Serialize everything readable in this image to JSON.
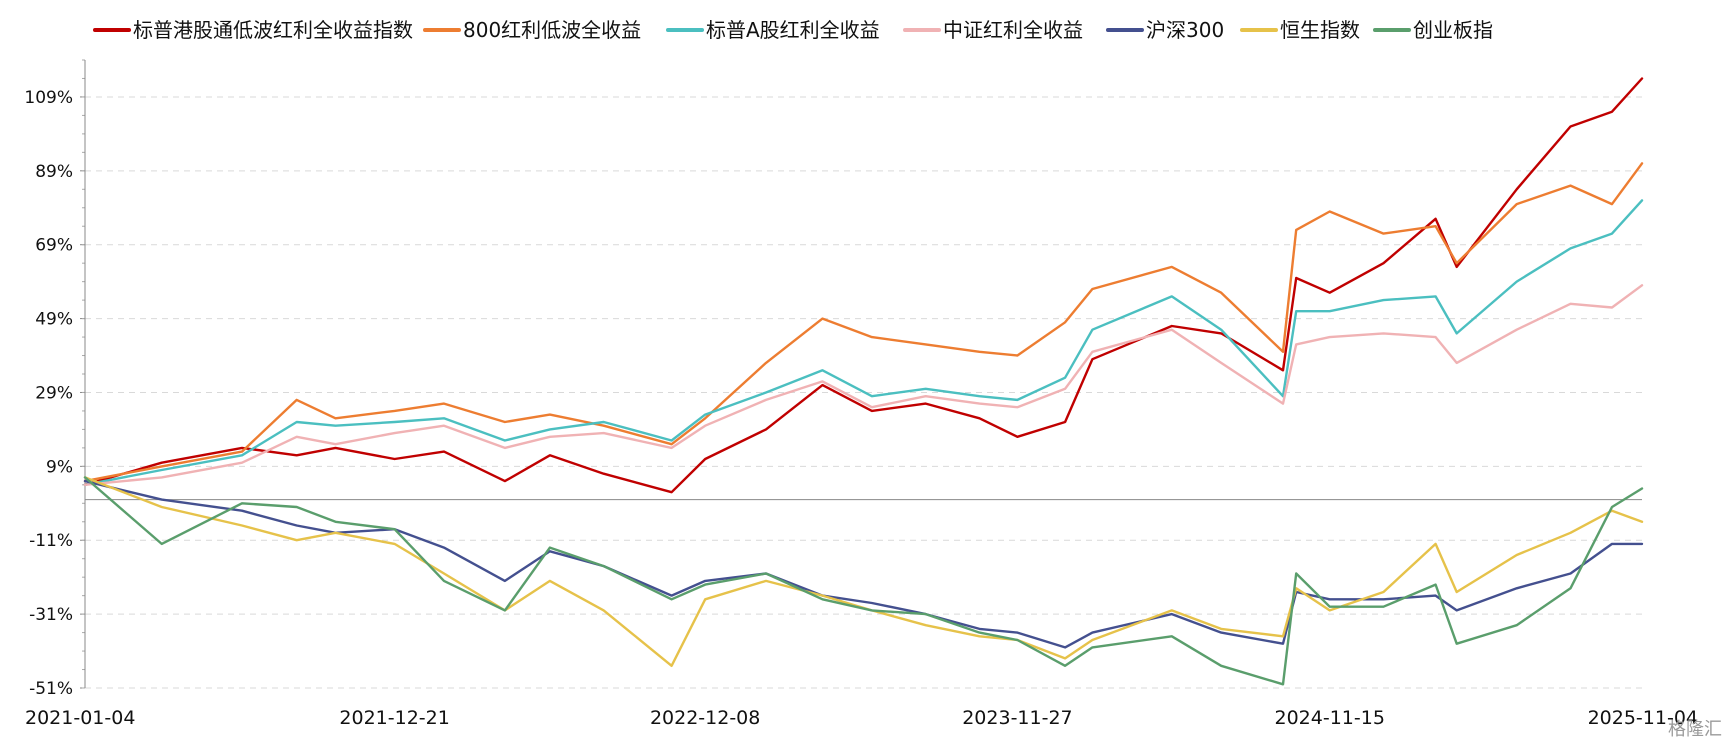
{
  "chart_data": {
    "type": "line",
    "title": "",
    "xlabel": "",
    "ylabel": "",
    "ylim": [
      -51,
      119
    ],
    "y_ticks": [
      "109%",
      "89%",
      "69%",
      "49%",
      "29%",
      "9%",
      "-11%",
      "-31%",
      "-51%"
    ],
    "x_ticks": [
      "2021-01-04",
      "2021-12-21",
      "2022-12-08",
      "2023-11-27",
      "2024-11-15",
      "2025-11-04"
    ],
    "x": [
      "2021-01-04",
      "2021-04-01",
      "2021-07-01",
      "2021-09-01",
      "2021-10-15",
      "2021-12-21",
      "2022-02-15",
      "2022-04-25",
      "2022-06-15",
      "2022-08-15",
      "2022-10-31",
      "2022-12-08",
      "2023-02-15",
      "2023-04-20",
      "2023-06-15",
      "2023-08-15",
      "2023-10-15",
      "2023-11-27",
      "2024-01-20",
      "2024-02-20",
      "2024-05-20",
      "2024-07-15",
      "2024-09-23",
      "2024-10-08",
      "2024-11-15",
      "2025-01-15",
      "2025-03-15",
      "2025-04-08",
      "2025-06-15",
      "2025-08-15",
      "2025-10-01",
      "2025-11-04"
    ],
    "grid": true,
    "legend_position": "top",
    "series": [
      {
        "name": "标普港股通低波红利全收益指数",
        "color": "#c00000",
        "values": [
          4,
          10,
          14,
          12,
          14,
          11,
          13,
          5,
          12,
          7,
          2,
          11,
          19,
          31,
          24,
          26,
          22,
          17,
          21,
          38,
          47,
          45,
          35,
          60,
          56,
          64,
          76,
          63,
          84,
          101,
          105,
          114
        ]
      },
      {
        "name": "800红利低波全收益",
        "color": "#ed7d31",
        "values": [
          5,
          9,
          13,
          27,
          22,
          24,
          26,
          21,
          23,
          20,
          15,
          22,
          37,
          49,
          44,
          42,
          40,
          39,
          48,
          57,
          63,
          56,
          40,
          73,
          78,
          72,
          74,
          64,
          80,
          85,
          80,
          91
        ]
      },
      {
        "name": "标普A股红利全收益",
        "color": "#4bbfc0",
        "values": [
          4,
          8,
          12,
          21,
          20,
          21,
          22,
          16,
          19,
          21,
          16,
          23,
          29,
          35,
          28,
          30,
          28,
          27,
          33,
          46,
          55,
          46,
          28,
          51,
          51,
          54,
          55,
          45,
          59,
          68,
          72,
          81
        ]
      },
      {
        "name": "中证红利全收益",
        "color": "#f0b2b4",
        "values": [
          4,
          6,
          10,
          17,
          15,
          18,
          20,
          14,
          17,
          18,
          14,
          20,
          27,
          32,
          25,
          28,
          26,
          25,
          30,
          40,
          46,
          37,
          26,
          42,
          44,
          45,
          44,
          37,
          46,
          53,
          52,
          58
        ]
      },
      {
        "name": "沪深300",
        "color": "#44508f",
        "values": [
          5,
          0,
          -3,
          -7,
          -9,
          -8,
          -13,
          -22,
          -14,
          -18,
          -26,
          -22,
          -20,
          -26,
          -28,
          -31,
          -35,
          -36,
          -40,
          -36,
          -31,
          -36,
          -39,
          -25,
          -27,
          -27,
          -26,
          -30,
          -24,
          -20,
          -12,
          -12
        ]
      },
      {
        "name": "恒生指数",
        "color": "#e6c24a",
        "values": [
          6,
          -2,
          -7,
          -11,
          -9,
          -12,
          -20,
          -30,
          -22,
          -30,
          -45,
          -27,
          -22,
          -26,
          -30,
          -34,
          -37,
          -38,
          -43,
          -38,
          -30,
          -35,
          -37,
          -24,
          -30,
          -25,
          -12,
          -25,
          -15,
          -9,
          -3,
          -6
        ]
      },
      {
        "name": "创业板指",
        "color": "#5a9e6c",
        "values": [
          6,
          -12,
          -1,
          -2,
          -6,
          -8,
          -22,
          -30,
          -13,
          -18,
          -27,
          -23,
          -20,
          -27,
          -30,
          -31,
          -36,
          -38,
          -45,
          -40,
          -37,
          -45,
          -50,
          -20,
          -29,
          -29,
          -23,
          -39,
          -34,
          -24,
          -2,
          3
        ]
      }
    ]
  },
  "watermark": "格隆汇"
}
